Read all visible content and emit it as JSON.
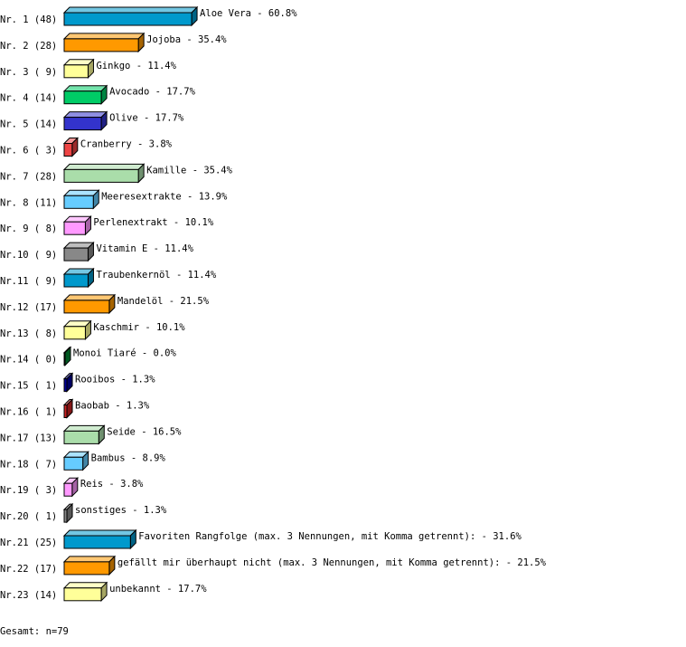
{
  "chart_data": {
    "type": "bar",
    "orientation": "horizontal",
    "style": "3d",
    "unit": "%",
    "rows": [
      {
        "label": "Nr. 1 (48)",
        "name": "Aloe Vera",
        "value": 60.8,
        "color": "#0099cc"
      },
      {
        "label": "Nr. 2 (28)",
        "name": "Jojoba",
        "value": 35.4,
        "color": "#ff9900"
      },
      {
        "label": "Nr. 3 ( 9)",
        "name": "Ginkgo",
        "value": 11.4,
        "color": "#ffff99"
      },
      {
        "label": "Nr. 4 (14)",
        "name": "Avocado",
        "value": 17.7,
        "color": "#00cc66"
      },
      {
        "label": "Nr. 5 (14)",
        "name": "Olive",
        "value": 17.7,
        "color": "#3333cc"
      },
      {
        "label": "Nr. 6 ( 3)",
        "name": "Cranberry",
        "value": 3.8,
        "color": "#ee4444"
      },
      {
        "label": "Nr. 7 (28)",
        "name": "Kamille",
        "value": 35.4,
        "color": "#aaddaa"
      },
      {
        "label": "Nr. 8 (11)",
        "name": "Meeresextrakte",
        "value": 13.9,
        "color": "#66ccff"
      },
      {
        "label": "Nr. 9 ( 8)",
        "name": "Perlenextrakt",
        "value": 10.1,
        "color": "#ff99ff"
      },
      {
        "label": "Nr.10 ( 9)",
        "name": "Vitamin E",
        "value": 11.4,
        "color": "#888888"
      },
      {
        "label": "Nr.11 ( 9)",
        "name": "Traubenkernöl",
        "value": 11.4,
        "color": "#0099cc"
      },
      {
        "label": "Nr.12 (17)",
        "name": "Mandelöl",
        "value": 21.5,
        "color": "#ff9900"
      },
      {
        "label": "Nr.13 ( 8)",
        "name": "Kaschmir",
        "value": 10.1,
        "color": "#ffff99"
      },
      {
        "label": "Nr.14 ( 0)",
        "name": "Monoi Tiaré",
        "value": 0.0,
        "color": "#008833"
      },
      {
        "label": "Nr.15 ( 1)",
        "name": "Rooibos",
        "value": 1.3,
        "color": "#000099"
      },
      {
        "label": "Nr.16 ( 1)",
        "name": "Baobab",
        "value": 1.3,
        "color": "#cc2222"
      },
      {
        "label": "Nr.17 (13)",
        "name": "Seide",
        "value": 16.5,
        "color": "#aaddaa"
      },
      {
        "label": "Nr.18 ( 7)",
        "name": "Bambus",
        "value": 8.9,
        "color": "#66ccff"
      },
      {
        "label": "Nr.19 ( 3)",
        "name": "Reis",
        "value": 3.8,
        "color": "#ff99ff"
      },
      {
        "label": "Nr.20 ( 1)",
        "name": "sonstiges",
        "value": 1.3,
        "color": "#888888"
      },
      {
        "label": "Nr.21 (25)",
        "name": "Favoriten Rangfolge (max. 3 Nennungen, mit Komma getrennt):",
        "value": 31.6,
        "color": "#0099cc"
      },
      {
        "label": "Nr.22 (17)",
        "name": "gefällt mir überhaupt nicht (max. 3 Nennungen, mit Komma getrennt):",
        "value": 21.5,
        "color": "#ff9900"
      },
      {
        "label": "Nr.23 (14)",
        "name": "unbekannt",
        "value": 17.7,
        "color": "#ffff99"
      }
    ],
    "total": "Gesamt: n=79"
  }
}
